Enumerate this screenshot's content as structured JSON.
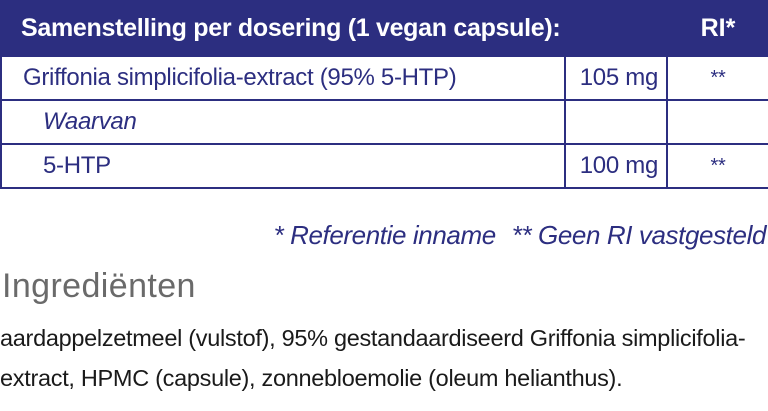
{
  "composition_table": {
    "header": {
      "title": "Samenstelling per dosering (1 vegan capsule):",
      "ri": "RI*"
    },
    "rows": [
      {
        "name": "Griffonia simplicifolia-extract (95% 5-HTP)",
        "amount": "105 mg",
        "ri": "**"
      },
      {
        "name": "Waarvan",
        "amount": "",
        "ri": ""
      },
      {
        "name": "5-HTP",
        "amount": "100 mg",
        "ri": "**"
      }
    ]
  },
  "footnotes": {
    "reference": "* Referentie inname",
    "no_ri": "** Geen RI vastgesteld"
  },
  "ingredients": {
    "heading": "Ingrediënten",
    "text": "aardappelzetmeel (vulstof), 95% gestandaardiseerd Griffonia simplicifolia-extract, HPMC (capsule), zonnebloemolie (oleum helianthus)."
  },
  "colors": {
    "brand_navy": "#2c2e80",
    "heading_gray": "#6a6a6a",
    "body_text": "#1a1a1a"
  }
}
